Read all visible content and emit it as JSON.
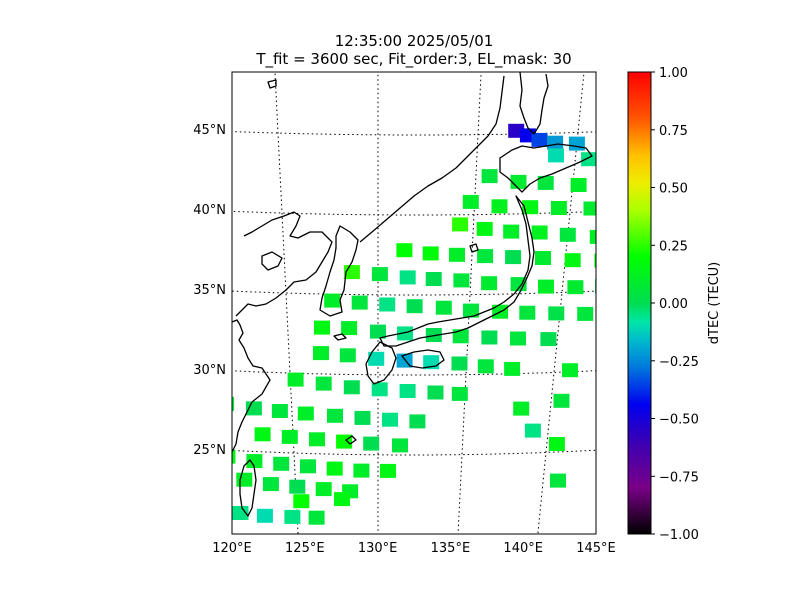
{
  "chart_data": {
    "type": "heatmap",
    "title": "12:35:00 2025/05/01",
    "subtitle": "T_fit = 3600 sec, Fit_order:3, EL_mask: 30",
    "xlim": [
      120,
      145
    ],
    "ylim": [
      20,
      48
    ],
    "lon_ticks": [
      120,
      125,
      130,
      135,
      140,
      145
    ],
    "lat_ticks": [
      25,
      30,
      35,
      40,
      45
    ],
    "lon_tick_labels": [
      "120°E",
      "125°E",
      "130°E",
      "135°E",
      "140°E",
      "145°E"
    ],
    "lat_tick_labels": [
      "25°N",
      "30°N",
      "35°N",
      "40°N",
      "45°N"
    ],
    "colorbar": {
      "label": "dTEC (TECU)",
      "range": [
        -1.0,
        1.0
      ],
      "ticks": [
        1.0,
        0.75,
        0.5,
        0.25,
        0.0,
        -0.25,
        -0.5,
        -0.75,
        -1.0
      ],
      "tick_labels": [
        "1.00",
        "0.75",
        "0.50",
        "0.25",
        "0.00",
        "−0.25",
        "−0.50",
        "−0.75",
        "−1.00"
      ],
      "colormap": "nipy_spectral-like (black → purple → blue → cyan → green → yellow → orange → red)"
    },
    "grid": "dotted graticule",
    "data_points": [
      {
        "lon": 136.9,
        "lat": 45.2,
        "dtec": -0.55
      },
      {
        "lon": 137.5,
        "lat": 44.9,
        "dtec": -0.45
      },
      {
        "lon": 138.1,
        "lat": 44.6,
        "dtec": -0.35
      },
      {
        "lon": 138.9,
        "lat": 44.4,
        "dtec": -0.22
      },
      {
        "lon": 140.0,
        "lat": 44.3,
        "dtec": -0.2
      },
      {
        "lon": 141.5,
        "lat": 44.7,
        "dtec": -0.18
      },
      {
        "lon": 142.8,
        "lat": 44.9,
        "dtec": -0.15
      },
      {
        "lon": 144.0,
        "lat": 44.5,
        "dtec": -0.12
      },
      {
        "lon": 139.0,
        "lat": 43.6,
        "dtec": -0.1
      },
      {
        "lon": 140.7,
        "lat": 43.3,
        "dtec": -0.05
      },
      {
        "lon": 142.3,
        "lat": 43.1,
        "dtec": -0.08
      },
      {
        "lon": 143.3,
        "lat": 42.2,
        "dtec": -0.05
      },
      {
        "lon": 144.1,
        "lat": 41.6,
        "dtec": 0.02
      },
      {
        "lon": 135.7,
        "lat": 42.4,
        "dtec": 0.05
      },
      {
        "lon": 137.2,
        "lat": 42.0,
        "dtec": 0.08
      },
      {
        "lon": 138.6,
        "lat": 41.9,
        "dtec": 0.05
      },
      {
        "lon": 140.3,
        "lat": 41.7,
        "dtec": 0.1
      },
      {
        "lon": 142.0,
        "lat": 41.5,
        "dtec": 0.05
      },
      {
        "lon": 134.8,
        "lat": 40.8,
        "dtec": 0.1
      },
      {
        "lon": 136.3,
        "lat": 40.5,
        "dtec": 0.12
      },
      {
        "lon": 137.9,
        "lat": 40.4,
        "dtec": 0.15
      },
      {
        "lon": 139.4,
        "lat": 40.3,
        "dtec": 0.1
      },
      {
        "lon": 141.1,
        "lat": 40.2,
        "dtec": 0.08
      },
      {
        "lon": 142.9,
        "lat": 40.0,
        "dtec": 0.05
      },
      {
        "lon": 134.3,
        "lat": 39.4,
        "dtec": 0.25
      },
      {
        "lon": 135.6,
        "lat": 39.1,
        "dtec": 0.15
      },
      {
        "lon": 137.0,
        "lat": 38.9,
        "dtec": 0.1
      },
      {
        "lon": 138.5,
        "lat": 38.8,
        "dtec": 0.12
      },
      {
        "lon": 140.0,
        "lat": 38.6,
        "dtec": 0.05
      },
      {
        "lon": 141.6,
        "lat": 38.4,
        "dtec": 0.1
      },
      {
        "lon": 143.0,
        "lat": 38.5,
        "dtec": 0.12
      },
      {
        "lon": 131.4,
        "lat": 37.8,
        "dtec": 0.2
      },
      {
        "lon": 132.8,
        "lat": 37.6,
        "dtec": 0.18
      },
      {
        "lon": 134.2,
        "lat": 37.5,
        "dtec": 0.1
      },
      {
        "lon": 135.7,
        "lat": 37.4,
        "dtec": 0.05
      },
      {
        "lon": 137.2,
        "lat": 37.3,
        "dtec": 0.0
      },
      {
        "lon": 138.8,
        "lat": 37.2,
        "dtec": 0.08
      },
      {
        "lon": 140.4,
        "lat": 37.0,
        "dtec": 0.15
      },
      {
        "lon": 142.0,
        "lat": 36.9,
        "dtec": 0.18
      },
      {
        "lon": 128.6,
        "lat": 36.4,
        "dtec": 0.25
      },
      {
        "lon": 130.1,
        "lat": 36.3,
        "dtec": 0.05
      },
      {
        "lon": 131.6,
        "lat": 36.1,
        "dtec": -0.05
      },
      {
        "lon": 133.0,
        "lat": 36.0,
        "dtec": 0.0
      },
      {
        "lon": 134.5,
        "lat": 35.9,
        "dtec": 0.05
      },
      {
        "lon": 136.0,
        "lat": 35.7,
        "dtec": 0.08
      },
      {
        "lon": 137.6,
        "lat": 35.6,
        "dtec": 0.05
      },
      {
        "lon": 139.1,
        "lat": 35.4,
        "dtec": 0.1
      },
      {
        "lon": 140.7,
        "lat": 35.3,
        "dtec": 0.08
      },
      {
        "lon": 142.2,
        "lat": 35.3,
        "dtec": 0.05
      },
      {
        "lon": 127.5,
        "lat": 34.6,
        "dtec": 0.1
      },
      {
        "lon": 129.0,
        "lat": 34.5,
        "dtec": 0.05
      },
      {
        "lon": 130.5,
        "lat": 34.4,
        "dtec": -0.05
      },
      {
        "lon": 132.0,
        "lat": 34.3,
        "dtec": 0.0
      },
      {
        "lon": 133.6,
        "lat": 34.2,
        "dtec": 0.05
      },
      {
        "lon": 135.1,
        "lat": 34.0,
        "dtec": 0.05
      },
      {
        "lon": 136.7,
        "lat": 33.9,
        "dtec": 0.1
      },
      {
        "lon": 138.2,
        "lat": 33.8,
        "dtec": 0.05
      },
      {
        "lon": 139.8,
        "lat": 33.7,
        "dtec": 0.02
      },
      {
        "lon": 141.4,
        "lat": 33.6,
        "dtec": 0.05
      },
      {
        "lon": 126.9,
        "lat": 32.9,
        "dtec": 0.15
      },
      {
        "lon": 128.4,
        "lat": 32.9,
        "dtec": 0.1
      },
      {
        "lon": 130.0,
        "lat": 32.7,
        "dtec": 0.0
      },
      {
        "lon": 131.5,
        "lat": 32.6,
        "dtec": -0.05
      },
      {
        "lon": 133.1,
        "lat": 32.5,
        "dtec": 0.0
      },
      {
        "lon": 134.6,
        "lat": 32.4,
        "dtec": 0.05
      },
      {
        "lon": 136.2,
        "lat": 32.3,
        "dtec": 0.0
      },
      {
        "lon": 137.8,
        "lat": 32.2,
        "dtec": 0.05
      },
      {
        "lon": 139.5,
        "lat": 32.1,
        "dtec": 0.0
      },
      {
        "lon": 126.8,
        "lat": 31.3,
        "dtec": 0.1
      },
      {
        "lon": 128.3,
        "lat": 31.2,
        "dtec": 0.05
      },
      {
        "lon": 129.9,
        "lat": 31.0,
        "dtec": -0.1
      },
      {
        "lon": 131.5,
        "lat": 30.9,
        "dtec": -0.2
      },
      {
        "lon": 133.0,
        "lat": 30.8,
        "dtec": -0.1
      },
      {
        "lon": 134.6,
        "lat": 30.7,
        "dtec": 0.0
      },
      {
        "lon": 136.1,
        "lat": 30.5,
        "dtec": 0.05
      },
      {
        "lon": 137.6,
        "lat": 30.3,
        "dtec": 0.1
      },
      {
        "lon": 125.3,
        "lat": 29.6,
        "dtec": 0.1
      },
      {
        "lon": 126.9,
        "lat": 29.4,
        "dtec": 0.05
      },
      {
        "lon": 128.5,
        "lat": 29.2,
        "dtec": 0.0
      },
      {
        "lon": 130.1,
        "lat": 29.1,
        "dtec": -0.05
      },
      {
        "lon": 131.7,
        "lat": 29.0,
        "dtec": -0.05
      },
      {
        "lon": 133.3,
        "lat": 28.9,
        "dtec": 0.0
      },
      {
        "lon": 134.7,
        "lat": 28.8,
        "dtec": 0.05
      },
      {
        "lon": 144.5,
        "lat": 29.8,
        "dtec": 0.05
      },
      {
        "lon": 140.9,
        "lat": 30.1,
        "dtec": 0.1
      },
      {
        "lon": 121.2,
        "lat": 27.9,
        "dtec": 0.05
      },
      {
        "lon": 122.8,
        "lat": 27.7,
        "dtec": 0.0
      },
      {
        "lon": 124.3,
        "lat": 27.6,
        "dtec": 0.05
      },
      {
        "lon": 125.8,
        "lat": 27.5,
        "dtec": 0.1
      },
      {
        "lon": 127.5,
        "lat": 27.4,
        "dtec": 0.05
      },
      {
        "lon": 129.1,
        "lat": 27.3,
        "dtec": 0.0
      },
      {
        "lon": 130.7,
        "lat": 27.2,
        "dtec": -0.05
      },
      {
        "lon": 132.3,
        "lat": 27.1,
        "dtec": 0.0
      },
      {
        "lon": 138.3,
        "lat": 27.8,
        "dtec": 0.1
      },
      {
        "lon": 140.6,
        "lat": 28.2,
        "dtec": 0.05
      },
      {
        "lon": 123.2,
        "lat": 26.1,
        "dtec": 0.15
      },
      {
        "lon": 124.8,
        "lat": 26.0,
        "dtec": 0.1
      },
      {
        "lon": 126.4,
        "lat": 25.9,
        "dtec": 0.1
      },
      {
        "lon": 128.0,
        "lat": 25.8,
        "dtec": 0.2
      },
      {
        "lon": 129.6,
        "lat": 25.7,
        "dtec": 0.0
      },
      {
        "lon": 131.3,
        "lat": 25.6,
        "dtec": 0.05
      },
      {
        "lon": 139.1,
        "lat": 26.4,
        "dtec": -0.05
      },
      {
        "lon": 140.6,
        "lat": 25.5,
        "dtec": 0.15
      },
      {
        "lon": 143.6,
        "lat": 25.5,
        "dtec": -0.05
      },
      {
        "lon": 121.0,
        "lat": 24.6,
        "dtec": 0.15
      },
      {
        "lon": 122.6,
        "lat": 24.4,
        "dtec": 0.1
      },
      {
        "lon": 124.2,
        "lat": 24.3,
        "dtec": 0.05
      },
      {
        "lon": 125.8,
        "lat": 24.2,
        "dtec": 0.05
      },
      {
        "lon": 127.4,
        "lat": 24.1,
        "dtec": 0.15
      },
      {
        "lon": 129.0,
        "lat": 24.0,
        "dtec": 0.1
      },
      {
        "lon": 130.6,
        "lat": 24.0,
        "dtec": 0.15
      },
      {
        "lon": 121.9,
        "lat": 23.2,
        "dtec": 0.1
      },
      {
        "lon": 123.5,
        "lat": 23.0,
        "dtec": 0.05
      },
      {
        "lon": 125.1,
        "lat": 22.9,
        "dtec": 0.0
      },
      {
        "lon": 126.7,
        "lat": 22.8,
        "dtec": 0.1
      },
      {
        "lon": 128.3,
        "lat": 22.7,
        "dtec": 0.1
      },
      {
        "lon": 140.9,
        "lat": 23.2,
        "dtec": 0.05
      },
      {
        "lon": 125.3,
        "lat": 22.0,
        "dtec": 0.2
      },
      {
        "lon": 127.8,
        "lat": 22.2,
        "dtec": 0.15
      },
      {
        "lon": 121.5,
        "lat": 21.1,
        "dtec": -0.05
      },
      {
        "lon": 123.0,
        "lat": 21.0,
        "dtec": -0.1
      },
      {
        "lon": 124.7,
        "lat": 21.0,
        "dtec": -0.05
      },
      {
        "lon": 126.2,
        "lat": 21.0,
        "dtec": 0.05
      }
    ]
  }
}
